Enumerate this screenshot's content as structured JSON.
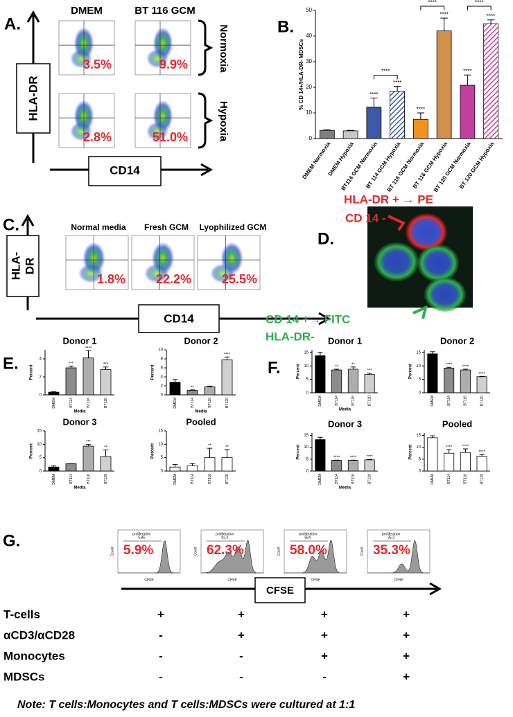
{
  "panel_a": {
    "label": "A.",
    "columns": [
      "DMEM",
      "BT 116 GCM"
    ],
    "rows": [
      "Normoxia",
      "Hypoxia"
    ],
    "y_axis": "HLA-DR",
    "x_axis": "CD14",
    "percents": [
      "3.5%",
      "9.9%",
      "2.8%",
      "51.0%"
    ]
  },
  "panel_b": {
    "label": "B."
  },
  "panel_c": {
    "label": "C.",
    "y_axis_lines": [
      "HLA-",
      "DR"
    ],
    "x_axis": "CD14",
    "columns": [
      "Normal media",
      "Fresh GCM",
      "Lyophilized GCM"
    ],
    "percents": [
      "1.8%",
      "22.2%",
      "25.5%"
    ]
  },
  "panel_d": {
    "label": "D.",
    "pe_label": "HLA-DR + → PE",
    "pe_sub": "CD 14 -",
    "fitc_label": "CD 14 +→ FITC",
    "fitc_sub": "HLA-DR-"
  },
  "panel_e": {
    "label": "E."
  },
  "panel_f": {
    "label": "F."
  },
  "panel_g": {
    "label": "G.",
    "gate_name": "proliferation",
    "gate_values": [
      "5.85",
      "62.3",
      "58.0",
      "35.3"
    ],
    "percents": [
      "5.9%",
      "62.3%",
      "58.0%",
      "35.3%"
    ],
    "hist_x_axis": "CFSE",
    "hist_y_axis": "Count",
    "x_axis": "CFSE",
    "rows": [
      [
        "T-cells",
        "+",
        "+",
        "+",
        "+"
      ],
      [
        "αCD3/αCD28",
        "-",
        "+",
        "+",
        "+"
      ],
      [
        "Monocytes",
        "-",
        "-",
        "+",
        "+"
      ],
      [
        "MDSCs",
        "-",
        "-",
        "-",
        "+"
      ]
    ],
    "note": "Note:  T cells:Monocytes and T cells:MDSCs were cultured at 1:1"
  },
  "chart_data": [
    {
      "type": "bar",
      "categories": [
        "DMEM Normoxia",
        "DMEM Hypoxia",
        "BT114 GCM Normoxia",
        "BT 114 GCM Hypoxia",
        "BT 116 GCM Normoxia",
        "BT 116 GCM Hypoxia",
        "BT 120 GCM Normoxia",
        "BT 120 GCM Hypoxia"
      ],
      "values": [
        3.2,
        3.0,
        12.3,
        18.4,
        7.5,
        42.0,
        20.8,
        44.8
      ],
      "errors": [
        0.2,
        0.2,
        3.5,
        2.0,
        2.5,
        5.0,
        4.0,
        1.5
      ],
      "colors": [
        "#7f7f7f",
        "#c8c8c8",
        "#3a5aa8",
        "#3a5aa8",
        "#f2921e",
        "#d2904c",
        "#c23f9d",
        "#c23f9d"
      ],
      "hatched": [
        false,
        false,
        false,
        true,
        false,
        false,
        false,
        true
      ],
      "annotations": [
        null,
        null,
        "****",
        "****",
        "****",
        "****",
        "****",
        "****"
      ],
      "comparison_labels": [
        "****",
        "****",
        "****"
      ],
      "ylim": [
        0,
        50
      ],
      "yticks": [
        0,
        10,
        20,
        30,
        40,
        50
      ],
      "ylabel": "% CD 14+/HLA-DR- MDSCs"
    },
    {
      "type": "bar",
      "title": "Donor 1",
      "categories": [
        "DMEM",
        "BT114",
        "BT116",
        "BT120"
      ],
      "values": [
        0.3,
        3.0,
        4.1,
        2.8
      ],
      "errors": [
        0.05,
        0.2,
        0.8,
        0.3
      ],
      "colors": [
        "#000000",
        "#8c8c8c",
        "#adadad",
        "#d0d0d0"
      ],
      "annotations": [
        null,
        "***",
        "****",
        "***"
      ],
      "ylim": [
        0,
        5
      ],
      "yticks": [
        0,
        2,
        4
      ],
      "ylabel": "Percent",
      "xlabel": "Media"
    },
    {
      "type": "bar",
      "title": "Donor 2",
      "categories": [
        "DMEM",
        "BT114",
        "BT116",
        "BT120"
      ],
      "values": [
        2.8,
        1.0,
        1.8,
        7.8
      ],
      "errors": [
        0.6,
        0.1,
        0.15,
        0.6
      ],
      "colors": [
        "#000000",
        "#8c8c8c",
        "#adadad",
        "#d0d0d0"
      ],
      "annotations": [
        null,
        "**",
        null,
        "****"
      ],
      "ylim": [
        0,
        10
      ],
      "yticks": [
        0,
        2,
        4,
        6,
        8,
        10
      ],
      "ylabel": "Percent",
      "xlabel": "Media"
    },
    {
      "type": "bar",
      "title": "Donor 3",
      "categories": [
        "DMEM",
        "BT114",
        "BT116",
        "BT120"
      ],
      "values": [
        1.5,
        2.8,
        9.3,
        5.4
      ],
      "errors": [
        0.4,
        0.05,
        0.6,
        2.5
      ],
      "colors": [
        "#000000",
        "#8c8c8c",
        "#adadad",
        "#d0d0d0"
      ],
      "annotations": [
        null,
        null,
        "***",
        "**"
      ],
      "ylim": [
        0,
        15
      ],
      "yticks": [
        0,
        5,
        10,
        15
      ],
      "ylabel": "Percent",
      "xlabel": "Media"
    },
    {
      "type": "bar",
      "title": "Pooled",
      "categories": [
        "DMEM",
        "BT114",
        "BT116",
        "BT120"
      ],
      "values": [
        1.5,
        2.0,
        5.0,
        5.0
      ],
      "errors": [
        1.0,
        0.8,
        3.5,
        3.0
      ],
      "colors": [
        "#ffffff",
        "#ffffff",
        "#ffffff",
        "#ffffff"
      ],
      "annotations": [
        null,
        null,
        "**",
        "**"
      ],
      "ylim": [
        0,
        15
      ],
      "yticks": [
        0,
        5,
        10,
        15
      ],
      "ylabel": "Percent"
    },
    {
      "type": "bar",
      "title": "Donor 1",
      "categories": [
        "DMEM",
        "BT114",
        "BT116",
        "BT120"
      ],
      "values": [
        13.8,
        8.5,
        8.8,
        6.8
      ],
      "errors": [
        1.2,
        0.3,
        0.8,
        0.5
      ],
      "colors": [
        "#000000",
        "#8c8c8c",
        "#adadad",
        "#d0d0d0"
      ],
      "annotations": [
        null,
        "**",
        "**",
        "***"
      ],
      "ylim": [
        0,
        16
      ],
      "yticks": [
        0,
        5,
        10,
        15
      ],
      "ylabel": "Percent",
      "xlabel": "Media"
    },
    {
      "type": "bar",
      "title": "Donor 2",
      "categories": [
        "DMEM",
        "BT114",
        "BT116",
        "BT120"
      ],
      "values": [
        14.5,
        9.2,
        8.5,
        6.0
      ],
      "errors": [
        0.8,
        0.3,
        0.3,
        0.1
      ],
      "colors": [
        "#000000",
        "#8c8c8c",
        "#adadad",
        "#d0d0d0"
      ],
      "annotations": [
        null,
        "****",
        "****",
        "****"
      ],
      "ylim": [
        0,
        16
      ],
      "yticks": [
        0,
        5,
        10,
        15
      ],
      "ylabel": "Percent"
    },
    {
      "type": "bar",
      "title": "Donor 3",
      "categories": [
        "DMEM",
        "BT114",
        "BT116",
        "BT120"
      ],
      "values": [
        13.2,
        4.5,
        4.5,
        4.7
      ],
      "errors": [
        1.0,
        0.1,
        0.1,
        0.2
      ],
      "colors": [
        "#000000",
        "#8c8c8c",
        "#adadad",
        "#d0d0d0"
      ],
      "annotations": [
        null,
        "****",
        "****",
        "****"
      ],
      "ylim": [
        0,
        16
      ],
      "yticks": [
        0,
        5,
        10,
        15
      ],
      "ylabel": "Percent",
      "xlabel": "Media"
    },
    {
      "type": "bar",
      "title": "Pooled",
      "categories": [
        "DMEM",
        "BT114",
        "BT116",
        "BT120"
      ],
      "values": [
        14.0,
        7.5,
        7.8,
        6.2
      ],
      "errors": [
        0.8,
        1.5,
        1.5,
        0.8
      ],
      "colors": [
        "#ffffff",
        "#ffffff",
        "#ffffff",
        "#ffffff"
      ],
      "annotations": [
        null,
        "****",
        "****",
        "****"
      ],
      "ylim": [
        0,
        16
      ],
      "yticks": [
        0,
        5,
        10,
        15
      ],
      "ylabel": "Percent"
    }
  ]
}
